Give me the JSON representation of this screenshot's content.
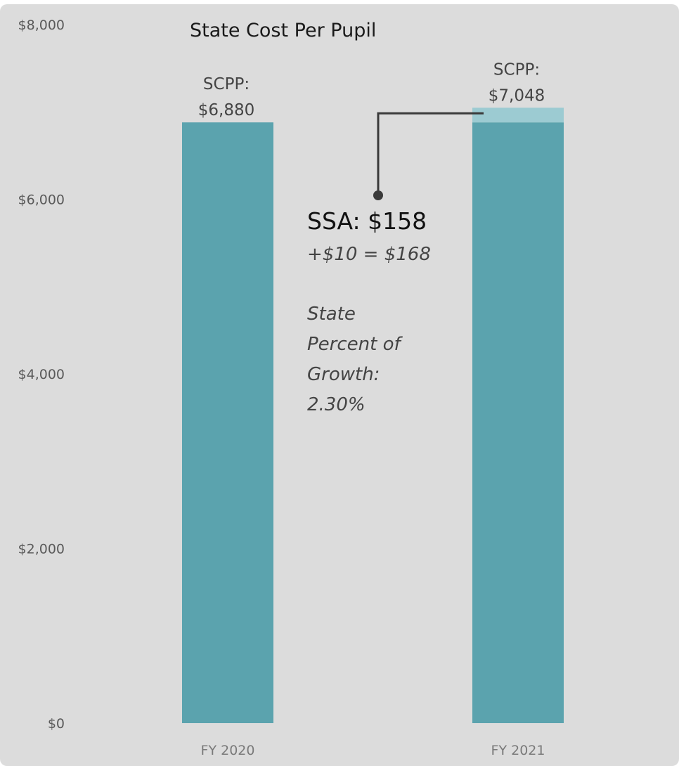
{
  "chart_data": {
    "type": "bar",
    "title": "State Cost Per Pupil",
    "categories": [
      "FY 2020",
      "FY 2021"
    ],
    "ylim": [
      0,
      8000
    ],
    "yticks": [
      "$0",
      "$2,000",
      "$4,000",
      "$6,000",
      "$8,000"
    ],
    "ytick_values": [
      0,
      2000,
      4000,
      6000,
      8000
    ],
    "series": [
      {
        "values": [
          6880,
          6880
        ],
        "color": "#5ba3ae"
      },
      {
        "values": [
          0,
          168
        ],
        "color": "#9ccbd2"
      }
    ],
    "bar_labels": [
      {
        "line1": "SCPP:",
        "line2": "$6,880",
        "value": 6880
      },
      {
        "line1": "SCPP:",
        "line2": "$7,048",
        "value": 7048
      }
    ],
    "annotation": {
      "ssa": "SSA:  $158",
      "increment": "+$10 = $168",
      "growth_lines": [
        "State",
        "Percent of",
        "Growth:",
        "2.30%"
      ]
    }
  },
  "colors": {
    "panel": "#dcdcdc",
    "bar": "#5ba3ae",
    "increment": "#9ccbd2",
    "connector": "#3a3a3a"
  }
}
